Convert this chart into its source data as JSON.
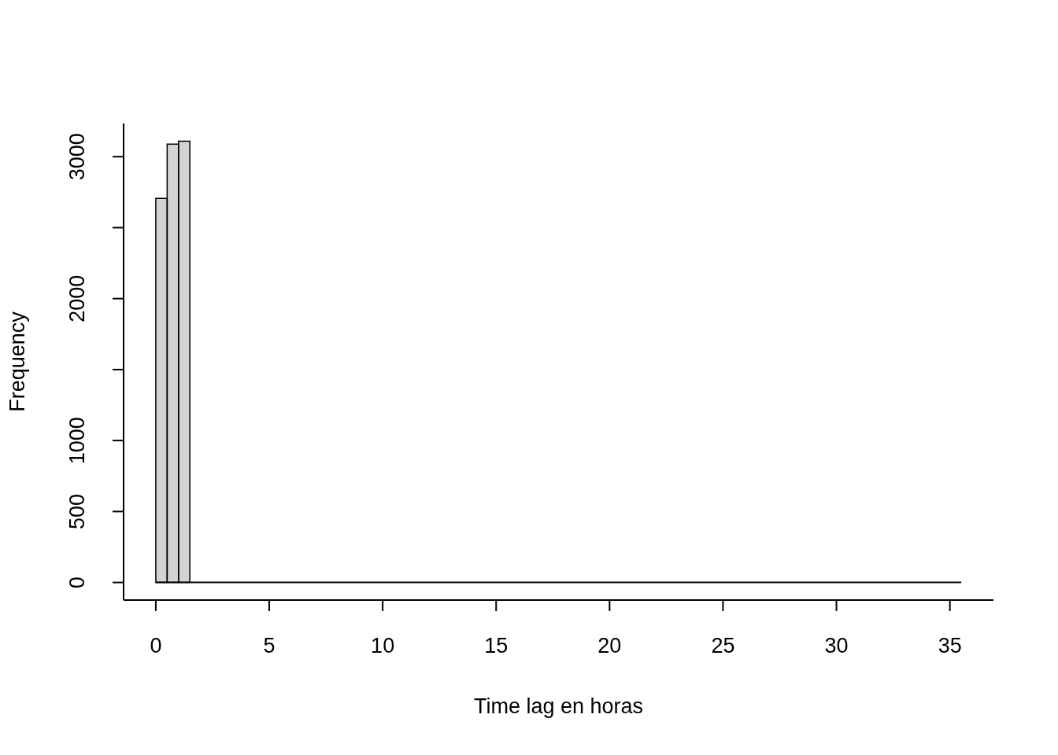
{
  "chart_data": {
    "type": "histogram",
    "xlabel": "Time lag en horas",
    "ylabel": "Frequency",
    "bins": [
      0,
      0.5,
      1,
      1.5,
      2,
      2.5,
      3,
      3.5,
      4,
      4.5,
      5,
      5.5,
      6,
      6.5,
      7,
      7.5,
      8,
      8.5,
      9,
      9.5,
      10,
      10.5,
      11,
      11.5,
      12,
      12.5,
      13,
      13.5,
      14,
      14.5,
      15,
      15.5,
      16,
      16.5,
      17,
      17.5,
      18,
      18.5,
      19,
      19.5,
      20,
      20.5,
      21,
      21.5,
      22,
      22.5,
      23,
      23.5,
      24,
      24.5,
      25,
      25.5,
      26,
      26.5,
      27,
      27.5,
      28,
      28.5,
      29,
      29.5,
      30,
      30.5,
      31,
      31.5,
      32,
      32.5,
      33,
      33.5,
      34,
      34.5,
      35,
      35.5
    ],
    "values": [
      2706,
      3088,
      3110,
      0,
      0,
      0,
      0,
      0,
      0,
      0,
      0,
      0,
      0,
      0,
      0,
      0,
      0,
      0,
      0,
      0,
      0,
      0,
      0,
      0,
      0,
      0,
      0,
      0,
      0,
      0,
      0,
      0,
      0,
      0,
      0,
      0,
      0,
      0,
      0,
      0,
      0,
      0,
      0,
      0,
      0,
      0,
      0,
      0,
      0,
      0,
      0,
      0,
      0,
      0,
      0,
      0,
      0,
      0,
      0,
      0,
      0,
      0,
      0,
      0,
      0,
      0,
      0,
      0,
      0,
      0,
      0
    ],
    "color": "#d3d3d3",
    "xlim": [
      -1.42,
      36.92
    ],
    "ylim": [
      -124,
      3234
    ],
    "xticks": [
      0,
      5,
      10,
      15,
      20,
      25,
      30,
      35
    ],
    "yticks": [
      0,
      500,
      1000,
      {
        "value": 1500,
        "label": null
      },
      2000,
      {
        "value": 2500,
        "label": null
      },
      3000
    ],
    "legend": false
  }
}
